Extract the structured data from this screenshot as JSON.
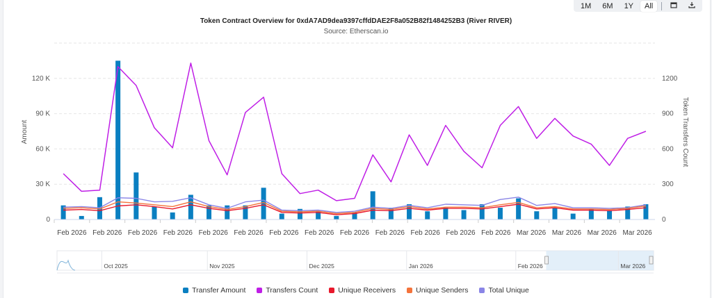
{
  "toolbar": {
    "ranges": [
      "1M",
      "6M",
      "1Y",
      "All"
    ],
    "active_range": "All",
    "calendar_icon": "calendar-icon",
    "download_icon": "download-icon"
  },
  "colors": {
    "transfer_amount": "#0a7fc1",
    "transfers_count": "#bf1ee6",
    "unique_receivers": "#e8192c",
    "unique_senders": "#f4733b",
    "total_unique": "#8a85e6"
  },
  "chart_data": {
    "type": "bar",
    "title": "Token Contract Overview for 0xdA7AD9dea9397cffdDAE2F8a052B82f1484252B3 (River RIVER)",
    "subtitle": "Source: Etherscan.io",
    "ylabel": "Amount",
    "y2label": "Token Transfers Count",
    "ylim": [
      0,
      150000
    ],
    "y2lim": [
      0,
      1500
    ],
    "yticks": [
      "0",
      "30 K",
      "60 K",
      "90 K",
      "120 K"
    ],
    "yticks_values": [
      0,
      30000,
      60000,
      90000,
      120000
    ],
    "y2ticks": [
      "0",
      "300",
      "600",
      "900",
      "1200"
    ],
    "y2ticks_values": [
      0,
      300,
      600,
      900,
      1200
    ],
    "xtick_labels": [
      "Feb 2026",
      "Feb 2026",
      "Feb 2026",
      "Feb 2026",
      "Feb 2026",
      "Feb 2026",
      "Feb 2026",
      "Feb 2026",
      "Feb 2026",
      "Feb 2026",
      "Feb 2026",
      "Feb 2026",
      "Feb 2026",
      "Mar 2026",
      "Mar 2026",
      "Mar 2026",
      "Mar 2026"
    ],
    "series": [
      {
        "name": "Transfer Amount",
        "type": "bar",
        "axis": "left",
        "values": [
          12000,
          3000,
          19000,
          135000,
          40000,
          11000,
          6000,
          21000,
          12000,
          12000,
          12000,
          27000,
          5000,
          9000,
          7000,
          3000,
          6000,
          24000,
          10000,
          13000,
          7000,
          10000,
          8000,
          13000,
          10000,
          18000,
          7000,
          10000,
          5000,
          9000,
          8000,
          11000,
          13000
        ]
      },
      {
        "name": "Transfers Count",
        "type": "line",
        "axis": "right",
        "values": [
          390,
          240,
          250,
          1300,
          1140,
          780,
          610,
          1330,
          670,
          380,
          910,
          1040,
          390,
          220,
          250,
          160,
          180,
          550,
          320,
          720,
          460,
          800,
          580,
          440,
          800,
          960,
          690,
          860,
          710,
          640,
          460,
          690,
          750
        ]
      },
      {
        "name": "Unique Receivers",
        "type": "line",
        "axis": "right",
        "values": [
          80,
          85,
          75,
          115,
          125,
          110,
          90,
          125,
          95,
          75,
          95,
          125,
          60,
          55,
          60,
          40,
          50,
          80,
          75,
          95,
          80,
          95,
          95,
          90,
          110,
          130,
          90,
          100,
          80,
          80,
          75,
          85,
          100
        ]
      },
      {
        "name": "Unique Senders",
        "type": "line",
        "axis": "right",
        "values": [
          95,
          100,
          90,
          150,
          140,
          125,
          110,
          150,
          110,
          85,
          110,
          145,
          70,
          65,
          70,
          50,
          60,
          95,
          85,
          110,
          90,
          105,
          105,
          100,
          125,
          145,
          100,
          110,
          90,
          90,
          85,
          95,
          115
        ]
      },
      {
        "name": "Total Unique",
        "type": "line",
        "axis": "right",
        "values": [
          105,
          110,
          100,
          185,
          180,
          150,
          155,
          185,
          125,
          95,
          150,
          165,
          80,
          75,
          80,
          60,
          70,
          105,
          95,
          120,
          100,
          130,
          125,
          120,
          170,
          190,
          120,
          135,
          100,
          100,
          95,
          100,
          125
        ]
      }
    ],
    "navigator": {
      "labels": [
        "Oct 2025",
        "Nov 2025",
        "Dec 2025",
        "Jan 2026",
        "Feb 2026",
        "Mar 2026"
      ],
      "selected_fraction": [
        0.82,
        1.0
      ]
    },
    "legend": [
      "Transfer Amount",
      "Transfers Count",
      "Unique Receivers",
      "Unique Senders",
      "Total Unique"
    ]
  }
}
